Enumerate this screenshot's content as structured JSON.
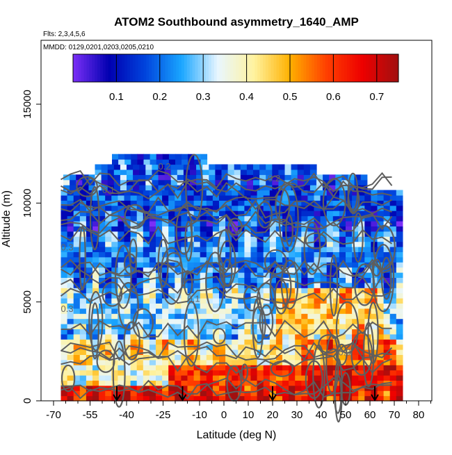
{
  "chart_data": {
    "type": "heatmap",
    "title": "ATOM2 Southbound asymmetry_1640_AMP",
    "subtitle_flights": "Flts: 2,3,4,5,6",
    "subtitle_dates": "MMDD: 0129,0201,0203,0205,0210",
    "xlabel": "Latitude (deg N)",
    "ylabel": "Altitude (m)",
    "xlim": [
      -70,
      87
    ],
    "ylim": [
      0,
      17500
    ],
    "x_ticks": [
      -70,
      -55,
      -40,
      -25,
      -10,
      0,
      10,
      20,
      30,
      40,
      50,
      60,
      70,
      80
    ],
    "x_tick_labels": [
      "-70",
      "-55",
      "-40",
      "-25",
      "-10",
      "0",
      "10",
      "20",
      "30",
      "40",
      "50",
      "60",
      "70",
      "80"
    ],
    "y_ticks": [
      0,
      5000,
      10000,
      15000
    ],
    "y_tick_labels": [
      "0",
      "5000",
      "10000",
      "15000"
    ],
    "colorbar": {
      "range": [
        0.0,
        0.75
      ],
      "ticks": [
        0.1,
        0.2,
        0.3,
        0.4,
        0.5,
        0.6,
        0.7
      ],
      "tick_labels": [
        "0.1",
        "0.2",
        "0.3",
        "0.4",
        "0.5",
        "0.6",
        "0.7"
      ],
      "colors": [
        "#7b2ff7",
        "#0000b0",
        "#0044dd",
        "#1aa6ff",
        "#e8f6ff",
        "#fff3a0",
        "#ffb000",
        "#ff4000",
        "#ee0000",
        "#a01010"
      ]
    },
    "contour_labels": [
      {
        "text": "0.2",
        "lat": -27,
        "alt": 11700
      },
      {
        "text": "0.2",
        "lat": 18,
        "alt": 11100
      },
      {
        "text": "0.1",
        "lat": -50,
        "alt": 10500
      },
      {
        "text": "0.1",
        "lat": -15,
        "alt": 5000
      },
      {
        "text": "0.3",
        "lat": -67,
        "alt": 7600
      },
      {
        "text": "0.3",
        "lat": -67,
        "alt": 4500
      },
      {
        "text": "0.3",
        "lat": 47,
        "alt": 2300
      }
    ],
    "arrow_latitudes": [
      -44,
      -17,
      20,
      62
    ],
    "data_extent": {
      "lat": [
        -67,
        72
      ],
      "alt": [
        0,
        12400
      ]
    }
  }
}
